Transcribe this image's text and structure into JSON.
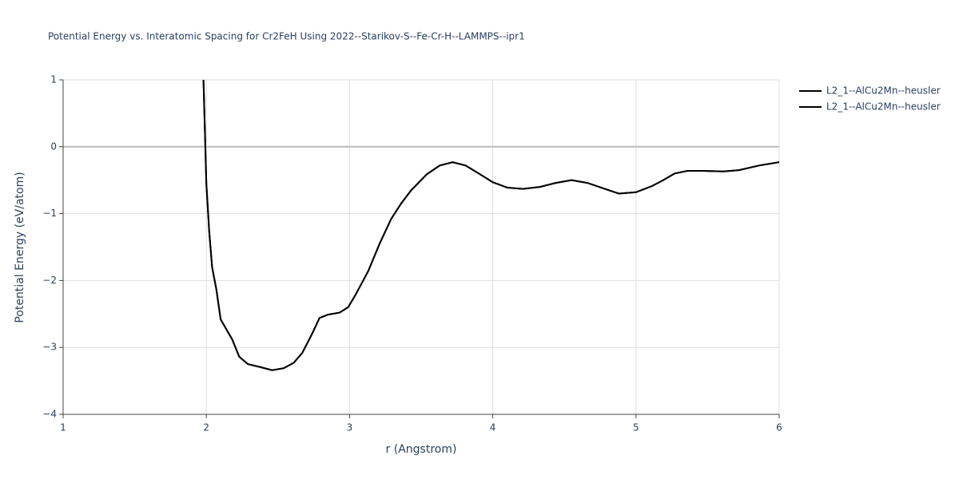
{
  "chart_data": {
    "type": "line",
    "title": "Potential Energy vs. Interatomic Spacing for Cr2FeH Using 2022--Starikov-S--Fe-Cr-H--LAMMPS--ipr1",
    "x_label": "r (Angstrom)",
    "y_label": "Potential Energy (eV/atom)",
    "x": [
      1.98,
      2.0,
      2.02,
      2.04,
      2.07,
      2.1,
      2.18,
      2.23,
      2.29,
      2.37,
      2.46,
      2.54,
      2.61,
      2.67,
      2.74,
      2.79,
      2.85,
      2.93,
      2.99,
      3.04,
      3.13,
      3.21,
      3.29,
      3.36,
      3.43,
      3.54,
      3.63,
      3.72,
      3.81,
      3.91,
      4.0,
      4.1,
      4.21,
      4.33,
      4.44,
      4.55,
      4.66,
      4.77,
      4.88,
      5.0,
      5.11,
      5.19,
      5.27,
      5.36,
      5.47,
      5.61,
      5.72,
      5.86,
      6.0
    ],
    "series": [
      {
        "name": "L2_1--AlCu2Mn--heusler",
        "color": "#000000",
        "values": [
          1.0,
          -0.55,
          -1.27,
          -1.8,
          -2.13,
          -2.58,
          -2.88,
          -3.14,
          -3.25,
          -3.29,
          -3.34,
          -3.31,
          -3.23,
          -3.08,
          -2.79,
          -2.56,
          -2.51,
          -2.48,
          -2.4,
          -2.22,
          -1.86,
          -1.45,
          -1.08,
          -0.85,
          -0.65,
          -0.41,
          -0.28,
          -0.23,
          -0.28,
          -0.41,
          -0.53,
          -0.61,
          -0.63,
          -0.6,
          -0.54,
          -0.5,
          -0.54,
          -0.62,
          -0.7,
          -0.68,
          -0.59,
          -0.5,
          -0.4,
          -0.36,
          -0.36,
          -0.37,
          -0.35,
          -0.28,
          -0.23
        ]
      },
      {
        "name": "L2_1--AlCu2Mn--heusler",
        "color": "#000000",
        "values": [
          1.0,
          -0.55,
          -1.27,
          -1.8,
          -2.13,
          -2.58,
          -2.88,
          -3.14,
          -3.25,
          -3.29,
          -3.34,
          -3.31,
          -3.23,
          -3.08,
          -2.79,
          -2.56,
          -2.51,
          -2.48,
          -2.4,
          -2.22,
          -1.86,
          -1.45,
          -1.08,
          -0.85,
          -0.65,
          -0.41,
          -0.28,
          -0.23,
          -0.28,
          -0.41,
          -0.53,
          -0.61,
          -0.63,
          -0.6,
          -0.54,
          -0.5,
          -0.54,
          -0.62,
          -0.7,
          -0.68,
          -0.59,
          -0.5,
          -0.4,
          -0.36,
          -0.36,
          -0.37,
          -0.35,
          -0.28,
          -0.23
        ]
      }
    ],
    "xlim": [
      1,
      6
    ],
    "xticks": [
      1,
      2,
      3,
      4,
      5,
      6
    ],
    "ylim": [
      -4,
      1
    ],
    "yticks": [
      {
        "value": -4,
        "label": "−4"
      },
      {
        "value": -3,
        "label": "−3"
      },
      {
        "value": -2,
        "label": "−2"
      },
      {
        "value": -1,
        "label": "−1"
      },
      0,
      1
    ],
    "grid": true,
    "legend": "top-right"
  }
}
